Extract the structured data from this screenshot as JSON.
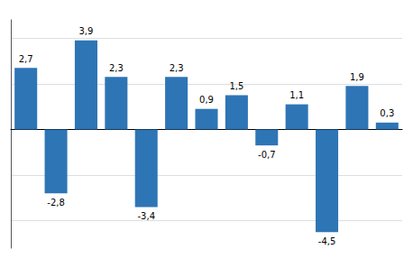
{
  "chart_data": {
    "type": "bar",
    "categories": [
      null,
      null,
      null,
      null,
      null,
      null,
      null,
      null,
      null,
      null,
      null,
      null,
      null
    ],
    "values": [
      2.7,
      -2.8,
      3.9,
      2.3,
      -3.4,
      2.3,
      0.9,
      1.5,
      -0.7,
      1.1,
      -4.5,
      1.9,
      0.3
    ],
    "value_labels": [
      "2,7",
      "-2,8",
      "3,9",
      "2,3",
      "-3,4",
      "2,3",
      "0,9",
      "1,5",
      "-0,7",
      "1,1",
      "-4,5",
      "1,9",
      "0,3"
    ],
    "data_labels": true,
    "color": "#2E75B6",
    "ylim": [
      -5.2,
      4.8
    ],
    "yticks": [
      -4,
      -2,
      0,
      2,
      4
    ],
    "grid": true,
    "tick_labels": false
  }
}
